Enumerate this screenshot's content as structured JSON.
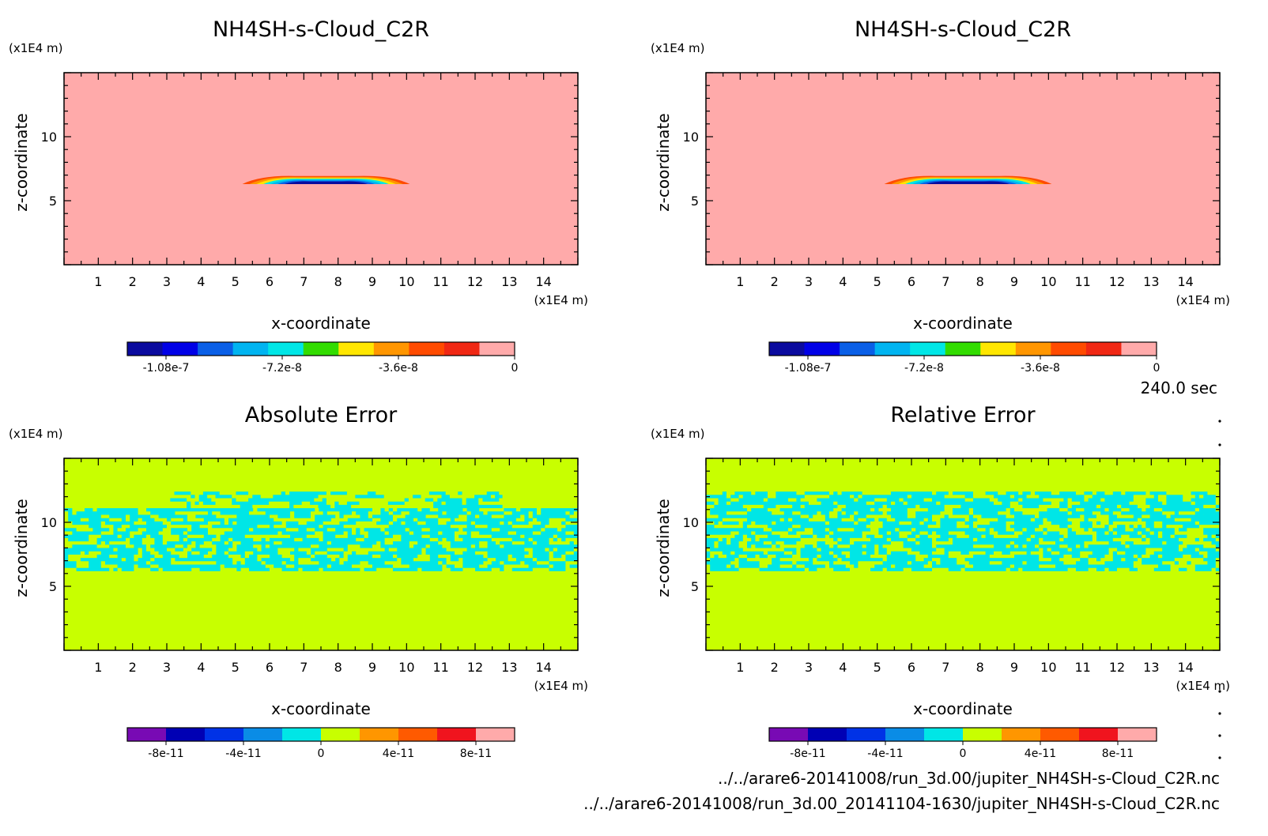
{
  "time_label": "240.0 sec",
  "footer": {
    "line1": "../../arare6-20141008/run_3d.00/jupiter_NH4SH-s-Cloud_C2R.nc",
    "line2": "../../arare6-20141008/run_3d.00_20141104-1630/jupiter_NH4SH-s-Cloud_C2R.nc"
  },
  "palettes": {
    "cloud": [
      "#0a0a9e",
      "#0000e6",
      "#0a5fe6",
      "#00b4f0",
      "#00e6e6",
      "#32dc00",
      "#ffe600",
      "#ff9600",
      "#ff4b00",
      "#f02814",
      "#ffaaaa"
    ],
    "error": [
      "#780ab4",
      "#0000b4",
      "#0032e6",
      "#0a8ce6",
      "#00e6e6",
      "#c8ff00",
      "#ff9600",
      "#ff5a00",
      "#f0141e",
      "#ffaaaa"
    ]
  },
  "chart_data": [
    {
      "type": "heatmap",
      "title": "NH4SH-s-Cloud_C2R",
      "xlabel": "x-coordinate",
      "ylabel": "z-coordinate",
      "x_unit": "(x1E4 m)",
      "y_unit": "(x1E4 m)",
      "xlim": [
        0,
        15
      ],
      "ylim": [
        0,
        15
      ],
      "x_ticks": [
        1,
        2,
        3,
        4,
        5,
        6,
        7,
        8,
        9,
        10,
        11,
        12,
        13,
        14
      ],
      "y_ticks": [
        5,
        10
      ],
      "background_value": 0,
      "feature": {
        "shape": "lens",
        "x_range": [
          5.0,
          10.3
        ],
        "z_bottom": 6.3,
        "z_top": 7.0,
        "min_value": -1.2e-07
      },
      "colorbar": {
        "vmin": -1.2e-07,
        "vmax": 0,
        "ticks": [
          -1.08e-07,
          -7.2e-08,
          -3.6e-08,
          0
        ],
        "tick_labels": [
          "-1.08e-7",
          "-7.2e-8",
          "-3.6e-8",
          "0"
        ]
      },
      "palette": "cloud"
    },
    {
      "type": "heatmap",
      "title": "NH4SH-s-Cloud_C2R",
      "xlabel": "x-coordinate",
      "ylabel": "z-coordinate",
      "x_unit": "(x1E4 m)",
      "y_unit": "(x1E4 m)",
      "xlim": [
        0,
        15
      ],
      "ylim": [
        0,
        15
      ],
      "x_ticks": [
        1,
        2,
        3,
        4,
        5,
        6,
        7,
        8,
        9,
        10,
        11,
        12,
        13,
        14
      ],
      "y_ticks": [
        5,
        10
      ],
      "background_value": 0,
      "feature": {
        "shape": "lens",
        "x_range": [
          5.0,
          10.3
        ],
        "z_bottom": 6.3,
        "z_top": 7.0,
        "min_value": -1.2e-07
      },
      "colorbar": {
        "vmin": -1.2e-07,
        "vmax": 0,
        "ticks": [
          -1.08e-07,
          -7.2e-08,
          -3.6e-08,
          0
        ],
        "tick_labels": [
          "-1.08e-7",
          "-7.2e-8",
          "-3.6e-8",
          "0"
        ]
      },
      "palette": "cloud"
    },
    {
      "type": "heatmap",
      "title": "Absolute Error",
      "xlabel": "x-coordinate",
      "ylabel": "z-coordinate",
      "x_unit": "(x1E4 m)",
      "y_unit": "(x1E4 m)",
      "xlim": [
        0,
        15
      ],
      "ylim": [
        0,
        15
      ],
      "x_ticks": [
        1,
        2,
        3,
        4,
        5,
        6,
        7,
        8,
        9,
        10,
        11,
        12,
        13,
        14
      ],
      "y_ticks": [
        5,
        10
      ],
      "background_value": 0,
      "noise_band": {
        "z_range": [
          6.2,
          12.4
        ],
        "value": -1e-11
      },
      "colorbar": {
        "vmin": -1e-10,
        "vmax": 1e-10,
        "ticks": [
          -8e-11,
          -4e-11,
          0,
          4e-11,
          8e-11
        ],
        "tick_labels": [
          "-8e-11",
          "-4e-11",
          "0",
          "4e-11",
          "8e-11"
        ]
      },
      "palette": "error"
    },
    {
      "type": "heatmap",
      "title": "Relative Error",
      "xlabel": "x-coordinate",
      "ylabel": "z-coordinate",
      "x_unit": "(x1E4 m)",
      "y_unit": "(x1E4 m)",
      "xlim": [
        0,
        15
      ],
      "ylim": [
        0,
        15
      ],
      "x_ticks": [
        1,
        2,
        3,
        4,
        5,
        6,
        7,
        8,
        9,
        10,
        11,
        12,
        13,
        14
      ],
      "y_ticks": [
        5,
        10
      ],
      "background_value": 0,
      "noise_band": {
        "z_range": [
          6.2,
          12.4
        ],
        "value": -1e-11
      },
      "colorbar": {
        "vmin": -1e-10,
        "vmax": 1e-10,
        "ticks": [
          -8e-11,
          -4e-11,
          0,
          4e-11,
          8e-11
        ],
        "tick_labels": [
          "-8e-11",
          "-4e-11",
          "0",
          "4e-11",
          "8e-11"
        ]
      },
      "palette": "error"
    }
  ]
}
